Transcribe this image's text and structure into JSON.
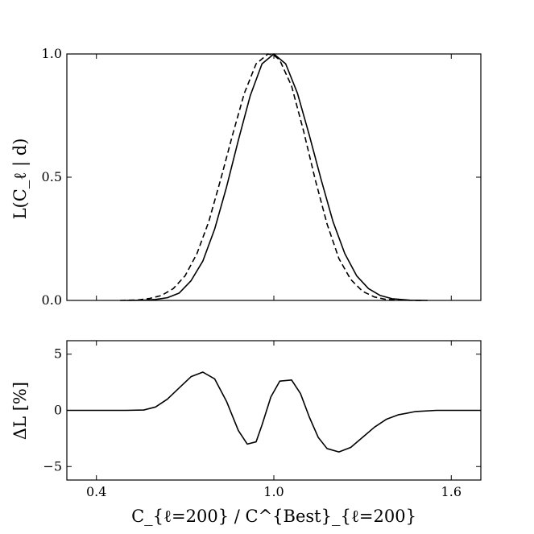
{
  "chart_data": [
    {
      "type": "line",
      "panel": "top",
      "ylabel": "L(C_ℓ | d)",
      "xlim": [
        0.3,
        1.7
      ],
      "ylim": [
        0.0,
        1.0
      ],
      "yticks": [
        0.0,
        0.5,
        1.0
      ],
      "ytick_labels": [
        "0.0",
        "0.5",
        "1.0"
      ],
      "xticks": [
        0.4,
        1.0,
        1.6
      ],
      "grid": false,
      "series": [
        {
          "style": "solid",
          "x": [
            0.5,
            0.56,
            0.6,
            0.64,
            0.68,
            0.72,
            0.76,
            0.8,
            0.84,
            0.88,
            0.92,
            0.96,
            1.0,
            1.04,
            1.08,
            1.12,
            1.16,
            1.2,
            1.24,
            1.28,
            1.32,
            1.36,
            1.4,
            1.46,
            1.52
          ],
          "values": [
            0.0,
            0.001,
            0.004,
            0.011,
            0.03,
            0.08,
            0.16,
            0.29,
            0.46,
            0.65,
            0.83,
            0.96,
            1.0,
            0.96,
            0.84,
            0.67,
            0.49,
            0.32,
            0.19,
            0.1,
            0.048,
            0.02,
            0.007,
            0.001,
            0.0
          ]
        },
        {
          "style": "dashed",
          "x": [
            0.48,
            0.54,
            0.58,
            0.62,
            0.66,
            0.7,
            0.74,
            0.78,
            0.82,
            0.86,
            0.9,
            0.94,
            0.98,
            1.0,
            1.02,
            1.06,
            1.1,
            1.14,
            1.18,
            1.22,
            1.26,
            1.3,
            1.34,
            1.38,
            1.44,
            1.5
          ],
          "values": [
            0.0,
            0.002,
            0.008,
            0.02,
            0.048,
            0.1,
            0.19,
            0.32,
            0.49,
            0.67,
            0.84,
            0.96,
            1.0,
            0.995,
            0.975,
            0.87,
            0.69,
            0.49,
            0.31,
            0.17,
            0.085,
            0.037,
            0.014,
            0.004,
            0.001,
            0.0
          ]
        }
      ]
    },
    {
      "type": "line",
      "panel": "bottom",
      "xlabel": "C_{ℓ=200} / C^{Best}_{ℓ=200}",
      "ylabel": "ΔL [%]",
      "xlim": [
        0.3,
        1.7
      ],
      "ylim": [
        -6.2,
        6.2
      ],
      "yticks": [
        -5,
        0,
        5
      ],
      "ytick_labels": [
        "−5",
        "0",
        "5"
      ],
      "xticks": [
        0.4,
        1.0,
        1.6
      ],
      "xtick_labels": [
        "0.4",
        "1.0",
        "1.6"
      ],
      "grid": false,
      "series": [
        {
          "style": "solid",
          "x": [
            0.3,
            0.4,
            0.5,
            0.56,
            0.6,
            0.64,
            0.68,
            0.72,
            0.76,
            0.8,
            0.84,
            0.88,
            0.91,
            0.94,
            0.96,
            0.99,
            1.02,
            1.06,
            1.09,
            1.12,
            1.15,
            1.18,
            1.22,
            1.26,
            1.3,
            1.34,
            1.38,
            1.42,
            1.48,
            1.55,
            1.62,
            1.7
          ],
          "values": [
            0.0,
            0.0,
            0.0,
            0.03,
            0.3,
            1.0,
            2.0,
            3.0,
            3.4,
            2.8,
            0.8,
            -1.8,
            -3.0,
            -2.8,
            -1.3,
            1.2,
            2.6,
            2.7,
            1.5,
            -0.6,
            -2.4,
            -3.4,
            -3.7,
            -3.3,
            -2.4,
            -1.5,
            -0.8,
            -0.4,
            -0.1,
            0.0,
            0.0,
            0.0
          ]
        }
      ]
    }
  ]
}
